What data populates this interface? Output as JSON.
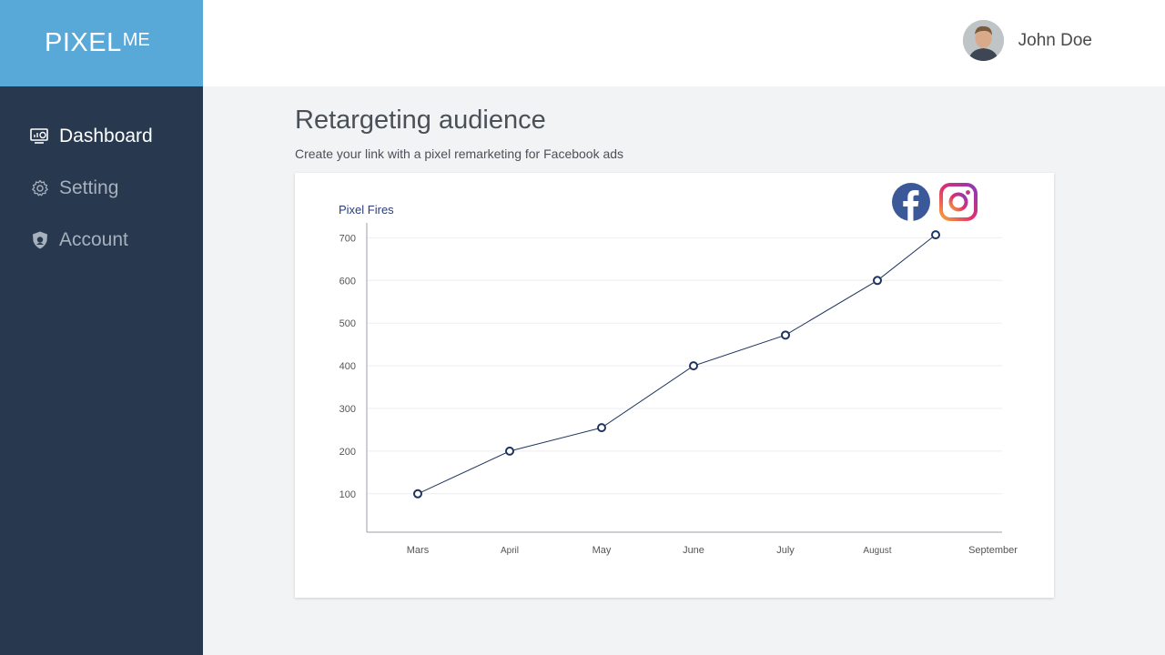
{
  "brand": {
    "logo_main": "PIXEL",
    "logo_sub": "ME"
  },
  "sidebar": {
    "items": [
      {
        "label": "Dashboard",
        "icon": "dashboard-icon",
        "active": true
      },
      {
        "label": "Setting",
        "icon": "gear-icon",
        "active": false
      },
      {
        "label": "Account",
        "icon": "shield-icon",
        "active": false
      }
    ]
  },
  "header": {
    "user_name": "John Doe"
  },
  "main": {
    "title": "Retargeting audience",
    "subtitle": "Create your link with a pixel remarketing for Facebook ads"
  },
  "colors": {
    "sidebar": "#27384f",
    "brand": "#58a8d8",
    "line": "#1e3460",
    "page_bg": "#f2f3f5"
  },
  "chart_data": {
    "type": "line",
    "title": "Pixel Fires",
    "categories": [
      "Mars",
      "April",
      "May",
      "June",
      "July",
      "August",
      "September"
    ],
    "values": [
      100,
      200,
      255,
      400,
      472,
      600,
      707
    ],
    "yticks": [
      100,
      200,
      300,
      400,
      500,
      600,
      700
    ],
    "ylim": [
      10,
      735
    ],
    "grid": true,
    "legend_icons": [
      "facebook-icon",
      "instagram-icon"
    ]
  }
}
